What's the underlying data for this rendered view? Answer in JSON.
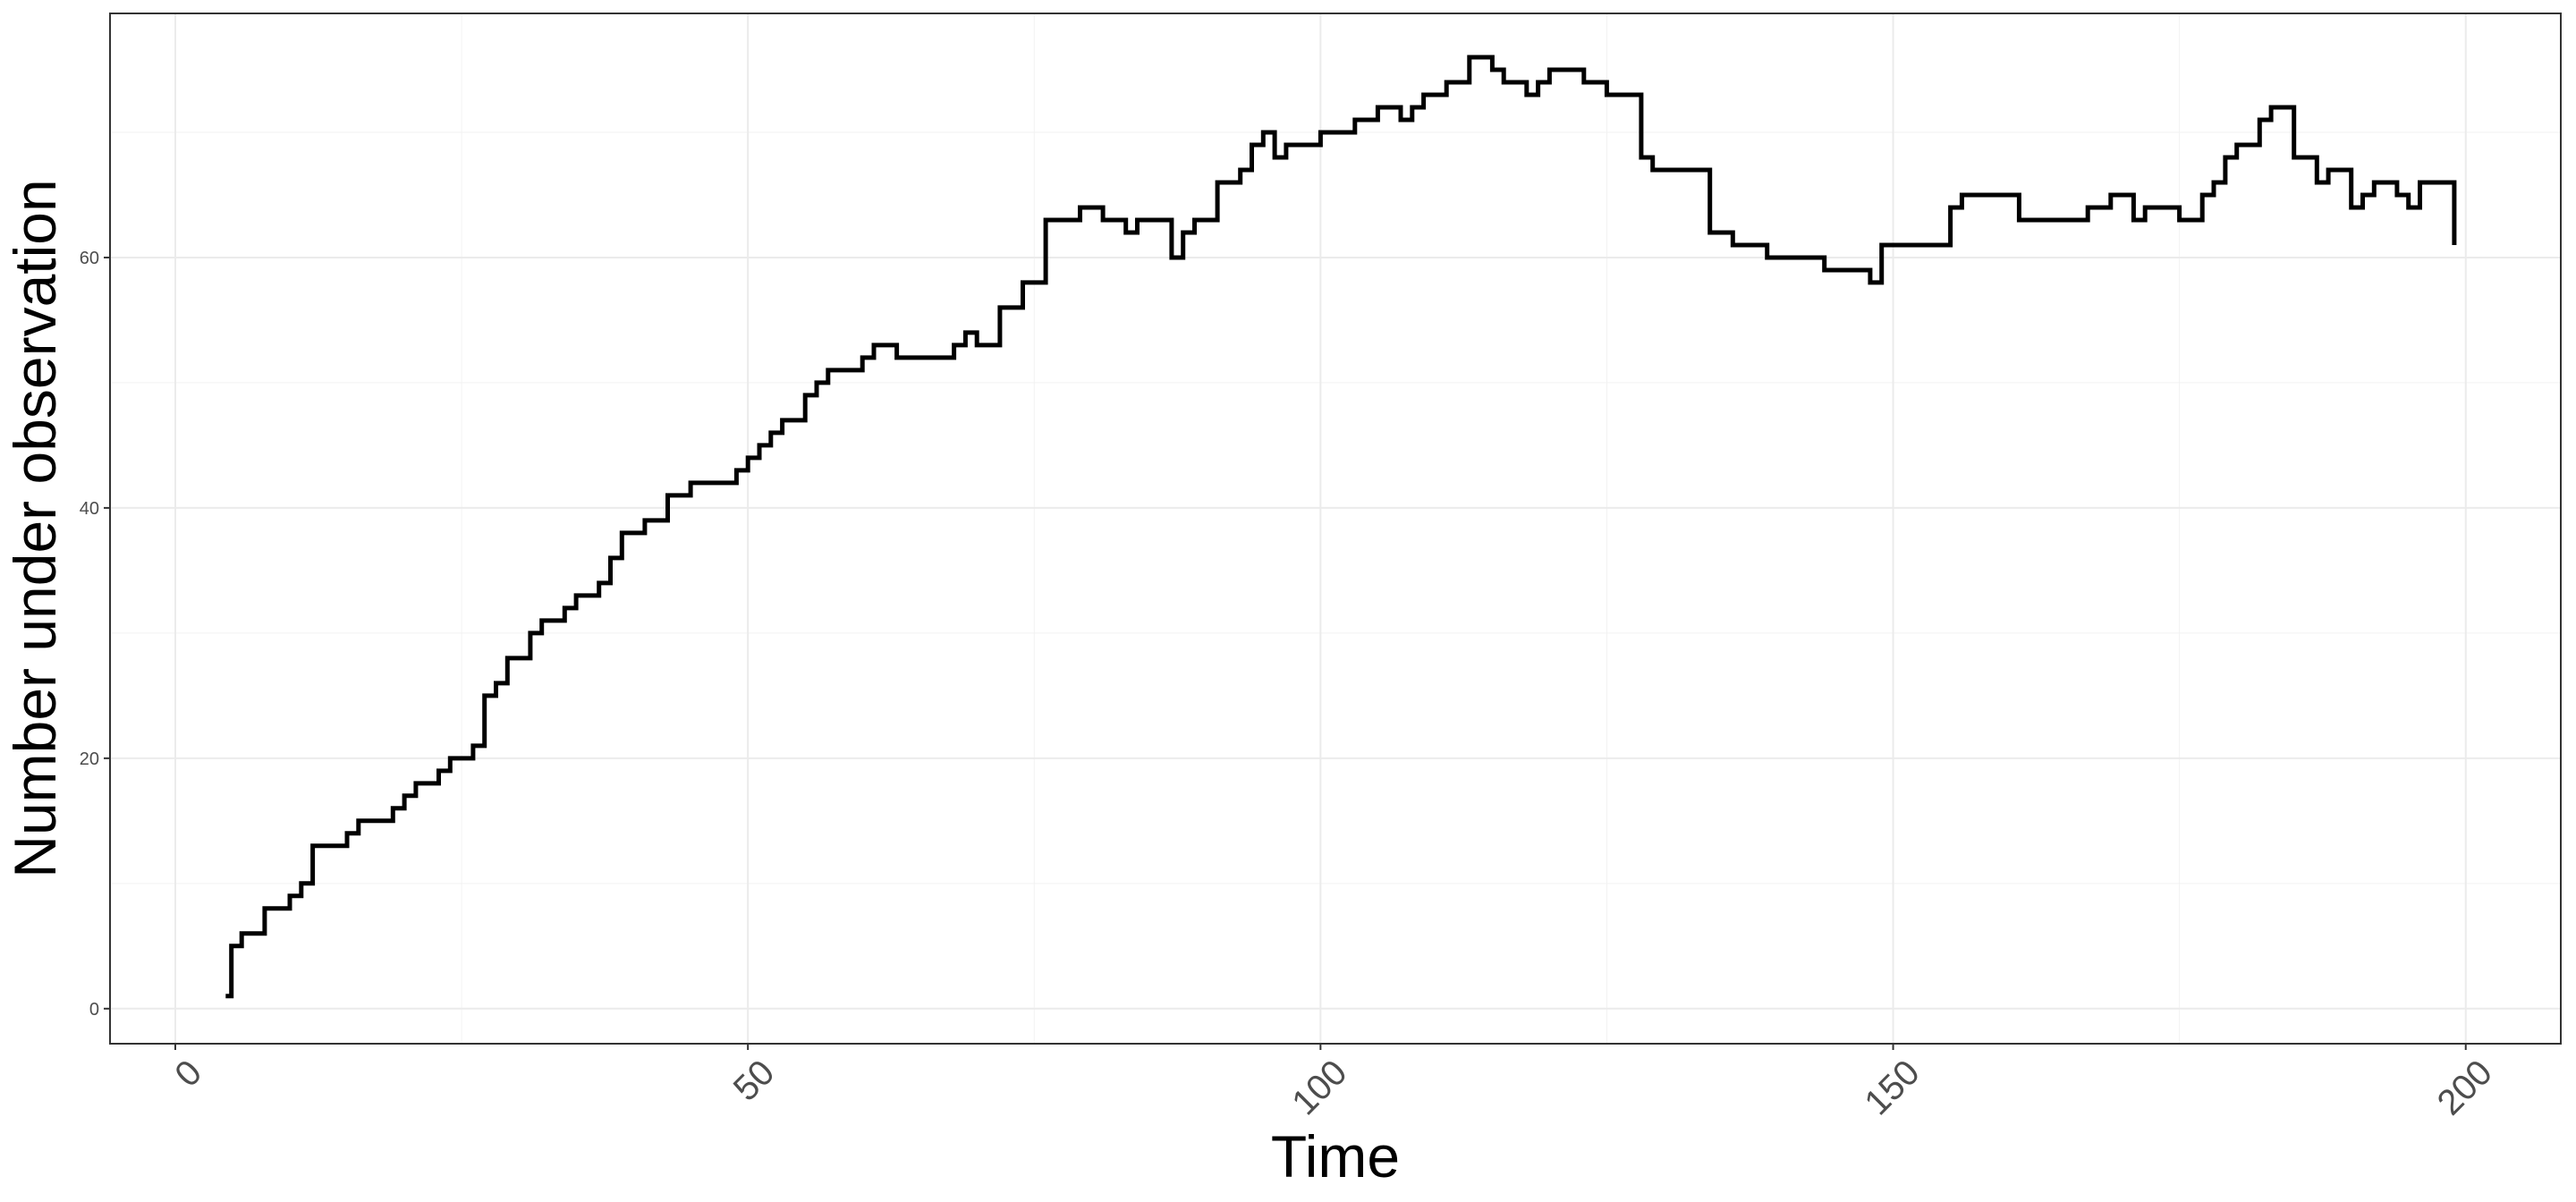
{
  "chart_data": {
    "type": "line",
    "step": true,
    "title": "",
    "xlabel": "Time",
    "ylabel": "Number under observation",
    "xlim": [
      -5.7,
      208.3
    ],
    "ylim": [
      -2.8,
      79.5
    ],
    "x_ticks": [
      0,
      50,
      100,
      150,
      200
    ],
    "y_ticks": [
      0,
      20,
      40,
      60
    ],
    "x_minor": [
      25,
      75,
      125,
      175
    ],
    "y_minor": [
      10,
      30,
      50,
      70
    ],
    "grid": true,
    "legend": "none",
    "line_color": "#000000",
    "series": [
      {
        "points": [
          [
            4.4,
            1
          ],
          [
            4.9,
            1
          ],
          [
            4.9,
            5
          ],
          [
            5.8,
            5
          ],
          [
            5.8,
            6
          ],
          [
            7.8,
            6
          ],
          [
            7.8,
            8
          ],
          [
            10.0,
            8
          ],
          [
            10.0,
            9
          ],
          [
            11.0,
            9
          ],
          [
            11.0,
            10
          ],
          [
            12.0,
            10
          ],
          [
            12.0,
            13
          ],
          [
            15.0,
            13
          ],
          [
            15.0,
            14
          ],
          [
            16.0,
            14
          ],
          [
            16.0,
            15
          ],
          [
            19.0,
            15
          ],
          [
            19.0,
            16
          ],
          [
            20.0,
            16
          ],
          [
            20.0,
            17
          ],
          [
            21.0,
            17
          ],
          [
            21.0,
            18
          ],
          [
            23.0,
            18
          ],
          [
            23.0,
            19
          ],
          [
            24.0,
            19
          ],
          [
            24.0,
            20
          ],
          [
            26.0,
            20
          ],
          [
            26.0,
            21
          ],
          [
            27.0,
            21
          ],
          [
            27.0,
            25
          ],
          [
            28.0,
            25
          ],
          [
            28.0,
            26
          ],
          [
            29.0,
            26
          ],
          [
            29.0,
            28
          ],
          [
            31.0,
            28
          ],
          [
            31.0,
            30
          ],
          [
            32.0,
            30
          ],
          [
            32.0,
            31
          ],
          [
            34.0,
            31
          ],
          [
            34.0,
            32
          ],
          [
            35.0,
            32
          ],
          [
            35.0,
            33
          ],
          [
            37.0,
            33
          ],
          [
            37.0,
            34
          ],
          [
            38.0,
            34
          ],
          [
            38.0,
            36
          ],
          [
            39.0,
            36
          ],
          [
            39.0,
            38
          ],
          [
            41.0,
            38
          ],
          [
            41.0,
            39
          ],
          [
            43.0,
            39
          ],
          [
            43.0,
            41
          ],
          [
            45.0,
            41
          ],
          [
            45.0,
            42
          ],
          [
            49.0,
            42
          ],
          [
            49.0,
            43
          ],
          [
            50.0,
            43
          ],
          [
            50.0,
            44
          ],
          [
            51.0,
            44
          ],
          [
            51.0,
            45
          ],
          [
            52.0,
            45
          ],
          [
            52.0,
            46
          ],
          [
            53.0,
            46
          ],
          [
            53.0,
            47
          ],
          [
            55.0,
            47
          ],
          [
            55.0,
            49
          ],
          [
            56.0,
            49
          ],
          [
            56.0,
            50
          ],
          [
            57.0,
            50
          ],
          [
            57.0,
            51
          ],
          [
            60.0,
            51
          ],
          [
            60.0,
            52
          ],
          [
            61.0,
            52
          ],
          [
            61.0,
            53
          ],
          [
            63.0,
            53
          ],
          [
            63.0,
            52
          ],
          [
            68.0,
            52
          ],
          [
            68.0,
            53
          ],
          [
            69.0,
            53
          ],
          [
            69.0,
            54
          ],
          [
            70.0,
            54
          ],
          [
            70.0,
            53
          ],
          [
            72.0,
            53
          ],
          [
            72.0,
            56
          ],
          [
            74.0,
            56
          ],
          [
            74.0,
            58
          ],
          [
            76.0,
            58
          ],
          [
            76.0,
            63
          ],
          [
            79.0,
            63
          ],
          [
            79.0,
            64
          ],
          [
            81.0,
            64
          ],
          [
            81.0,
            63
          ],
          [
            83.0,
            63
          ],
          [
            83.0,
            62
          ],
          [
            84.0,
            62
          ],
          [
            84.0,
            63
          ],
          [
            87.0,
            63
          ],
          [
            87.0,
            60
          ],
          [
            88.0,
            60
          ],
          [
            88.0,
            62
          ],
          [
            89.0,
            62
          ],
          [
            89.0,
            63
          ],
          [
            91.0,
            63
          ],
          [
            91.0,
            66
          ],
          [
            93.0,
            66
          ],
          [
            93.0,
            67
          ],
          [
            94.0,
            67
          ],
          [
            94.0,
            69
          ],
          [
            95.0,
            69
          ],
          [
            95.0,
            70
          ],
          [
            96.0,
            70
          ],
          [
            96.0,
            68
          ],
          [
            97.0,
            68
          ],
          [
            97.0,
            69
          ],
          [
            100.0,
            69
          ],
          [
            100.0,
            70
          ],
          [
            103.0,
            70
          ],
          [
            103.0,
            71
          ],
          [
            105.0,
            71
          ],
          [
            105.0,
            72
          ],
          [
            107.0,
            72
          ],
          [
            107.0,
            71
          ],
          [
            108.0,
            71
          ],
          [
            108.0,
            72
          ],
          [
            109.0,
            72
          ],
          [
            109.0,
            73
          ],
          [
            111.0,
            73
          ],
          [
            111.0,
            74
          ],
          [
            113.0,
            74
          ],
          [
            113.0,
            76
          ],
          [
            115.0,
            76
          ],
          [
            115.0,
            75
          ],
          [
            116.0,
            75
          ],
          [
            116.0,
            74
          ],
          [
            118.0,
            74
          ],
          [
            118.0,
            73
          ],
          [
            119.0,
            73
          ],
          [
            119.0,
            74
          ],
          [
            120.0,
            74
          ],
          [
            120.0,
            75
          ],
          [
            123.0,
            75
          ],
          [
            123.0,
            74
          ],
          [
            125.0,
            74
          ],
          [
            125.0,
            73
          ],
          [
            128.0,
            73
          ],
          [
            128.0,
            68
          ],
          [
            129.0,
            68
          ],
          [
            129.0,
            67
          ],
          [
            134.0,
            67
          ],
          [
            134.0,
            62
          ],
          [
            136.0,
            62
          ],
          [
            136.0,
            61
          ],
          [
            139.0,
            61
          ],
          [
            139.0,
            60
          ],
          [
            144.0,
            60
          ],
          [
            144.0,
            59
          ],
          [
            148.0,
            59
          ],
          [
            148.0,
            58
          ],
          [
            149.0,
            58
          ],
          [
            149.0,
            61
          ],
          [
            155.0,
            61
          ],
          [
            155.0,
            64
          ],
          [
            156.0,
            64
          ],
          [
            156.0,
            65
          ],
          [
            161.0,
            65
          ],
          [
            161.0,
            63
          ],
          [
            167.0,
            63
          ],
          [
            167.0,
            64
          ],
          [
            169.0,
            64
          ],
          [
            169.0,
            65
          ],
          [
            171.0,
            65
          ],
          [
            171.0,
            63
          ],
          [
            172.0,
            63
          ],
          [
            172.0,
            64
          ],
          [
            175.0,
            64
          ],
          [
            175.0,
            63
          ],
          [
            177.0,
            63
          ],
          [
            177.0,
            65
          ],
          [
            178.0,
            65
          ],
          [
            178.0,
            66
          ],
          [
            179.0,
            66
          ],
          [
            179.0,
            68
          ],
          [
            180.0,
            68
          ],
          [
            180.0,
            69
          ],
          [
            182.0,
            69
          ],
          [
            182.0,
            71
          ],
          [
            183.0,
            71
          ],
          [
            183.0,
            72
          ],
          [
            185.0,
            72
          ],
          [
            185.0,
            68
          ],
          [
            187.0,
            68
          ],
          [
            187.0,
            66
          ],
          [
            188.0,
            66
          ],
          [
            188.0,
            67
          ],
          [
            190.0,
            67
          ],
          [
            190.0,
            64
          ],
          [
            191.0,
            64
          ],
          [
            191.0,
            65
          ],
          [
            192.0,
            65
          ],
          [
            192.0,
            66
          ],
          [
            194.0,
            66
          ],
          [
            194.0,
            65
          ],
          [
            195.0,
            65
          ],
          [
            195.0,
            64
          ],
          [
            196.0,
            64
          ],
          [
            196.0,
            66
          ],
          [
            199.0,
            66
          ],
          [
            199.0,
            61
          ]
        ]
      }
    ]
  }
}
